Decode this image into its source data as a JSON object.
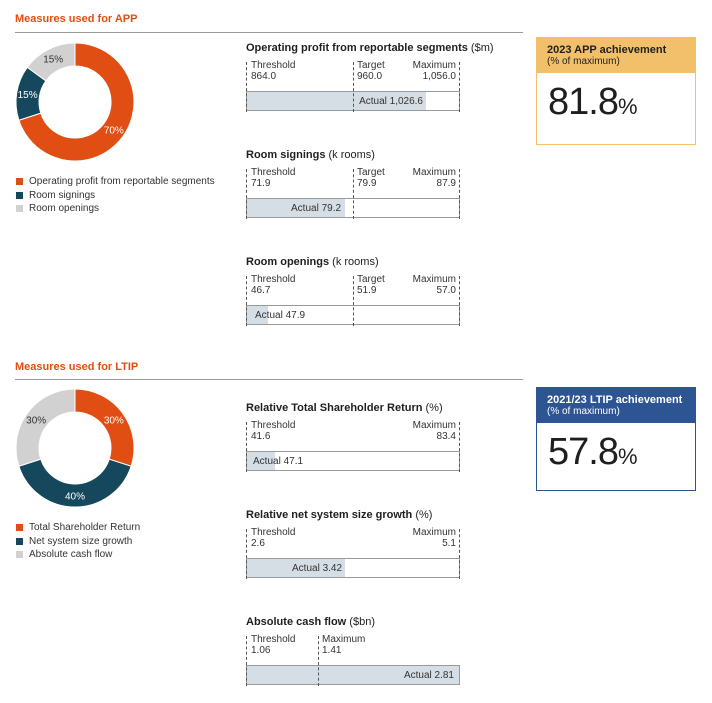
{
  "app": {
    "section_title": "Measures used for APP",
    "donut": [
      {
        "label": "Operating profit from reportable segments",
        "value": 70,
        "display": "70%",
        "color": "#e04e14"
      },
      {
        "label": "Room signings",
        "value": 15,
        "display": "15%",
        "color": "#15485c"
      },
      {
        "label": "Room openings",
        "value": 15,
        "display": "15%",
        "color": "#d1d1d1"
      }
    ],
    "achievement": {
      "title": "2023 APP achievement",
      "subtitle": "(% of maximum)",
      "value": "81.8",
      "unit": "%",
      "head_color": "#f2c06a",
      "border_color": "#f2c06a"
    },
    "measures": [
      {
        "title": "Operating profit from reportable segments",
        "unit": " ($m)",
        "threshold_label": "Threshold",
        "threshold": "864.0",
        "target_label": "Target",
        "target": "960.0",
        "maximum_label": "Maximum",
        "maximum": "1,056.0",
        "actual_label": "Actual 1,026.6",
        "actual_fraction": 0.845
      },
      {
        "title": "Room signings",
        "unit": " (k rooms)",
        "threshold_label": "Threshold",
        "threshold": "71.9",
        "target_label": "Target",
        "target": "79.9",
        "maximum_label": "Maximum",
        "maximum": "87.9",
        "actual_label": "Actual 79.2",
        "actual_fraction": 0.46
      },
      {
        "title": "Room openings",
        "unit": " (k rooms)",
        "threshold_label": "Threshold",
        "threshold": "46.7",
        "target_label": "Target",
        "target": "51.9",
        "maximum_label": "Maximum",
        "maximum": "57.0",
        "actual_label": "Actual 47.9",
        "actual_fraction": 0.1
      }
    ]
  },
  "ltip": {
    "section_title": "Measures used for LTIP",
    "donut": [
      {
        "label": "Total Shareholder Return",
        "value": 30,
        "display": "30%",
        "color": "#e04e14"
      },
      {
        "label": "Net system size growth",
        "value": 40,
        "display": "40%",
        "color": "#15485c"
      },
      {
        "label": "Absolute cash flow",
        "value": 30,
        "display": "30%",
        "color": "#d1d1d1"
      }
    ],
    "achievement": {
      "title": "2021/23 LTIP achievement",
      "subtitle": "(% of maximum)",
      "value": "57.8",
      "unit": "%",
      "head_color": "#2d5594",
      "border_color": "#2d5594"
    },
    "measures": [
      {
        "title": "Relative Total Shareholder Return",
        "unit": " (%)",
        "threshold_label": "Threshold",
        "threshold": "41.6",
        "maximum_label": "Maximum",
        "maximum": "83.4",
        "actual_label": "Actual 47.1",
        "actual_fraction": 0.13
      },
      {
        "title": "Relative net system size growth",
        "unit": " (%)",
        "threshold_label": "Threshold",
        "threshold": "2.6",
        "maximum_label": "Maximum",
        "maximum": "5.1",
        "actual_label": "Actual 3.42",
        "actual_fraction": 0.46
      },
      {
        "title": "Absolute cash flow",
        "unit": " ($bn)",
        "threshold_label": "Threshold",
        "threshold": "1.06",
        "maximum_label": "Maximum",
        "maximum": "1.41",
        "actual_label": "Actual 2.81",
        "actual_fraction": 1.0
      }
    ]
  },
  "chart_data": [
    {
      "type": "pie",
      "title": "Measures used for APP",
      "categories": [
        "Operating profit from reportable segments",
        "Room signings",
        "Room openings"
      ],
      "values": [
        70,
        15,
        15
      ]
    },
    {
      "type": "bar",
      "title": "Operating profit from reportable segments ($m)",
      "threshold": 864.0,
      "target": 960.0,
      "maximum": 1056.0,
      "actual": 1026.6
    },
    {
      "type": "bar",
      "title": "Room signings (k rooms)",
      "threshold": 71.9,
      "target": 79.9,
      "maximum": 87.9,
      "actual": 79.2
    },
    {
      "type": "bar",
      "title": "Room openings (k rooms)",
      "threshold": 46.7,
      "target": 51.9,
      "maximum": 57.0,
      "actual": 47.9
    },
    {
      "type": "pie",
      "title": "Measures used for LTIP",
      "categories": [
        "Total Shareholder Return",
        "Net system size growth",
        "Absolute cash flow"
      ],
      "values": [
        30,
        40,
        30
      ]
    },
    {
      "type": "bar",
      "title": "Relative Total Shareholder Return (%)",
      "threshold": 41.6,
      "maximum": 83.4,
      "actual": 47.1
    },
    {
      "type": "bar",
      "title": "Relative net system size growth (%)",
      "threshold": 2.6,
      "maximum": 5.1,
      "actual": 3.42
    },
    {
      "type": "bar",
      "title": "Absolute cash flow ($bn)",
      "threshold": 1.06,
      "maximum": 1.41,
      "actual": 2.81
    }
  ]
}
